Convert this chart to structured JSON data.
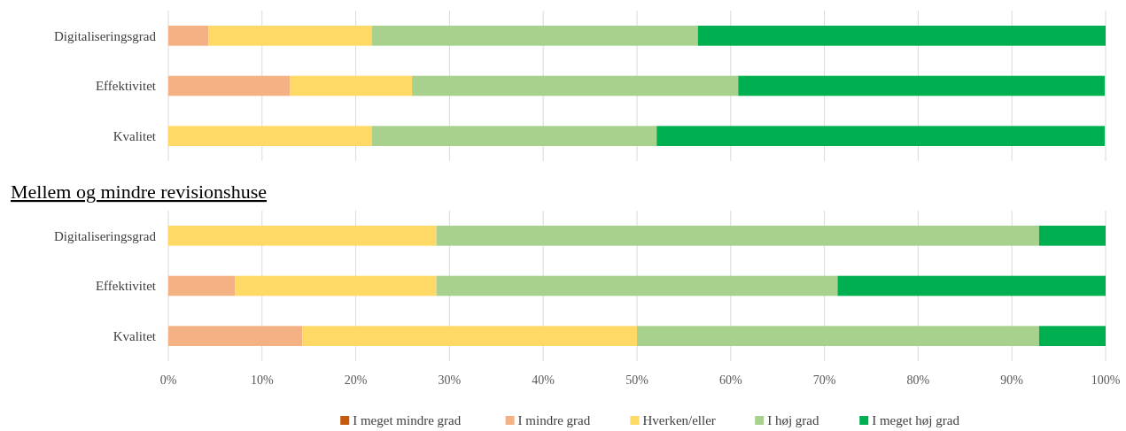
{
  "chart_data": [
    {
      "type": "bar",
      "orientation": "horizontal",
      "stacked": true,
      "categories": [
        "Digitaliseringsgrad",
        "Effektivitet",
        "Kvalitet"
      ],
      "series": [
        {
          "color": "#c55a11",
          "values": [
            0,
            0,
            0
          ]
        },
        {
          "color": "#f4b183",
          "values": [
            4.3,
            13.0,
            0
          ]
        },
        {
          "color": "#ffd966",
          "values": [
            17.4,
            13.0,
            21.7
          ]
        },
        {
          "color": "#a9d18e",
          "values": [
            34.8,
            34.8,
            30.4
          ]
        },
        {
          "color": "#00b050",
          "values": [
            43.5,
            39.1,
            47.8
          ]
        }
      ],
      "xlim": [
        0,
        100
      ],
      "xticks": [
        {
          "value": 0,
          "label": null
        },
        {
          "value": 10,
          "label": null
        },
        {
          "value": 20,
          "label": null
        },
        {
          "value": 30,
          "label": null
        },
        {
          "value": 40,
          "label": null
        },
        {
          "value": 50,
          "label": null
        },
        {
          "value": 60,
          "label": null
        },
        {
          "value": 70,
          "label": null
        },
        {
          "value": 80,
          "label": null
        },
        {
          "value": 90,
          "label": null
        },
        {
          "value": 100,
          "label": null
        }
      ],
      "grid": "x",
      "tick_labels": "y",
      "legend": false
    },
    {
      "type": "bar",
      "orientation": "horizontal",
      "stacked": true,
      "title": "Mellem og mindre revisionshuse",
      "categories": [
        "Digitaliseringsgrad",
        "Effektivitet",
        "Kvalitet"
      ],
      "series": [
        {
          "name": "I meget mindre grad",
          "color": "#c55a11",
          "values": [
            0,
            0,
            0
          ]
        },
        {
          "name": "I mindre grad",
          "color": "#f4b183",
          "values": [
            0,
            7.1,
            14.3
          ]
        },
        {
          "name": "Hverken/eller",
          "color": "#ffd966",
          "values": [
            28.6,
            21.5,
            35.7
          ]
        },
        {
          "name": "I høj grad",
          "color": "#a9d18e",
          "values": [
            64.3,
            42.8,
            42.9
          ]
        },
        {
          "name": "I meget høj grad",
          "color": "#00b050",
          "values": [
            7.1,
            28.6,
            7.1
          ]
        }
      ],
      "xlim": [
        0,
        100
      ],
      "xticks": [
        {
          "value": 0,
          "label": "0%"
        },
        {
          "value": 10,
          "label": "10%"
        },
        {
          "value": 20,
          "label": "20%"
        },
        {
          "value": 30,
          "label": "30%"
        },
        {
          "value": 40,
          "label": "40%"
        },
        {
          "value": 50,
          "label": "50%"
        },
        {
          "value": 60,
          "label": "60%"
        },
        {
          "value": 70,
          "label": "70%"
        },
        {
          "value": 80,
          "label": "80%"
        },
        {
          "value": 90,
          "label": "90%"
        },
        {
          "value": 100,
          "label": "100%"
        }
      ],
      "grid": "x",
      "legend": "bottom"
    }
  ]
}
